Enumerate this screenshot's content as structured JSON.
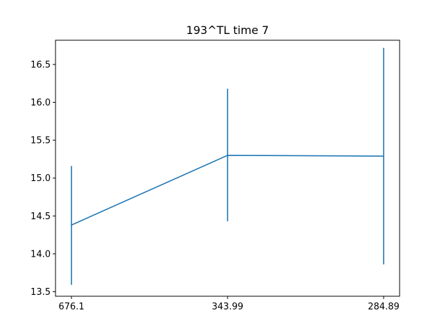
{
  "chart_data": {
    "type": "line",
    "title": "193^TL time 7",
    "xlabel": "",
    "ylabel": "",
    "categories": [
      "676.1",
      "343.99",
      "284.89"
    ],
    "series": [
      {
        "values": [
          14.38,
          15.3,
          15.29
        ],
        "error_low": [
          13.59,
          14.43,
          13.86
        ],
        "error_high": [
          15.16,
          16.18,
          16.72
        ]
      }
    ],
    "ylim": [
      13.44,
      16.82
    ],
    "yticks": [
      13.5,
      14.0,
      14.5,
      15.0,
      15.5,
      16.0,
      16.5
    ],
    "ytick_labels": [
      "13.5",
      "14.0",
      "14.5",
      "15.0",
      "15.5",
      "16.0",
      "16.5"
    ],
    "grid": false,
    "color": "#1f77b4"
  }
}
